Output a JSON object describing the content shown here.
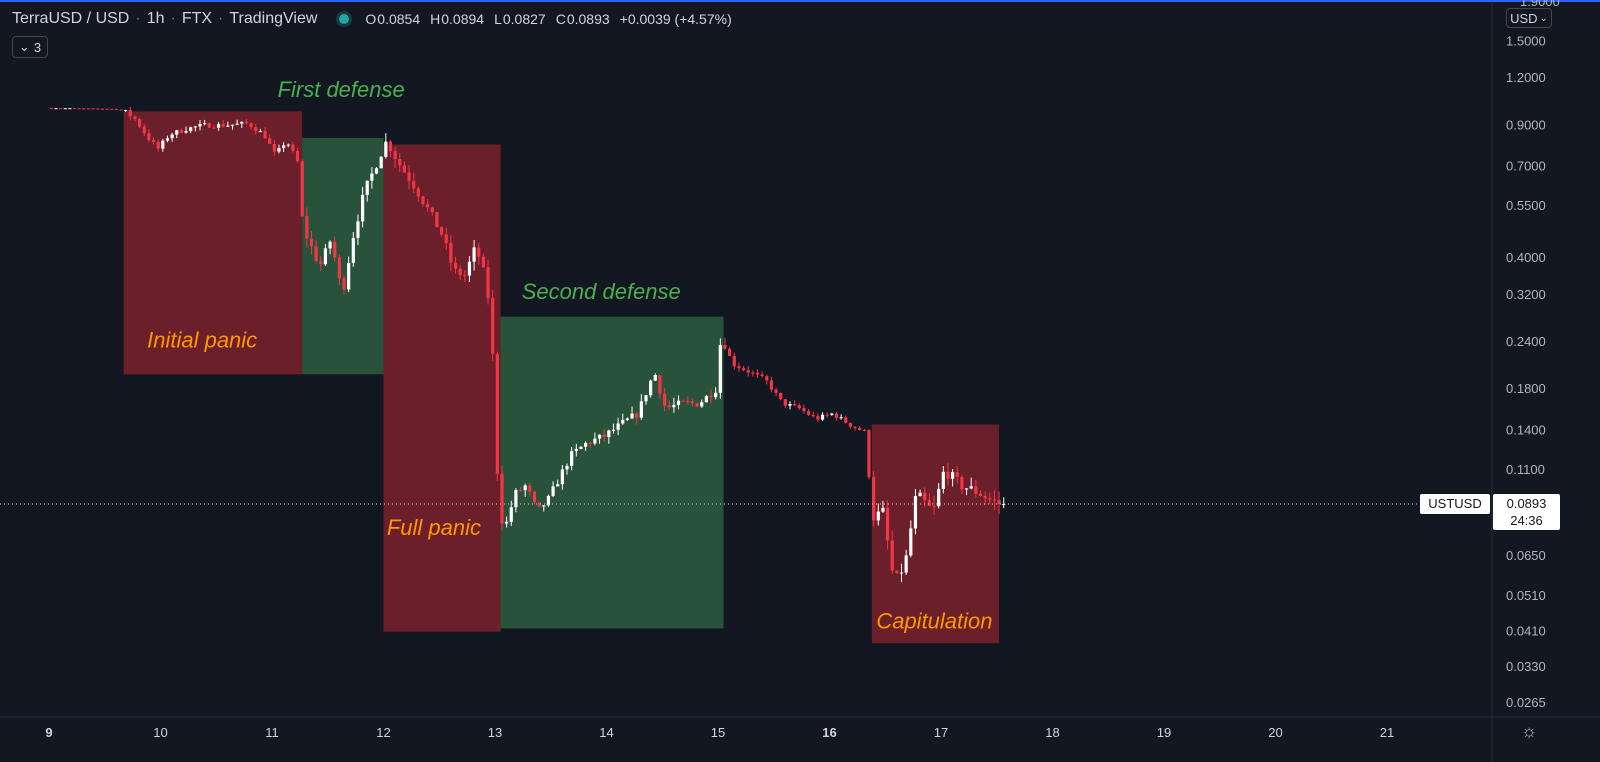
{
  "header": {
    "symbol": "TerraUSD / USD",
    "interval": "1h",
    "exchange": "FTX",
    "platform": "TradingView",
    "ohlc": {
      "o_label": "O",
      "o_value": "0.0854",
      "h_label": "H",
      "h_value": "0.0894",
      "l_label": "L",
      "l_value": "0.0827",
      "c_label": "C",
      "c_value": "0.0893",
      "change": "+0.0039 (+4.57%)"
    }
  },
  "collapse_button": {
    "label": "3"
  },
  "currency_button": {
    "label": "USD"
  },
  "axis_top_partial": "1.9000",
  "price_tag": {
    "symbol": "USTUSD",
    "price": "0.0893",
    "countdown": "24:36"
  },
  "colors": {
    "background": "#131722",
    "up": "#ffffff",
    "down": "#f23645",
    "red_zone": "#6b1f2b",
    "green_zone": "#28523a",
    "panic_text": "#ff9800",
    "defense_text": "#4caf50"
  },
  "chart_data": {
    "type": "candlestick",
    "y_scale": "log",
    "ylim": [
      0.025,
      1.9
    ],
    "yticks": [
      "1.5000",
      "1.2000",
      "0.9000",
      "0.7000",
      "0.5500",
      "0.4000",
      "0.3200",
      "0.2400",
      "0.1800",
      "0.1400",
      "0.1100",
      "0.0650",
      "0.0510",
      "0.0410",
      "0.0330",
      "0.0265"
    ],
    "ytick_values": [
      1.5,
      1.2,
      0.9,
      0.7,
      0.55,
      0.4,
      0.32,
      0.24,
      0.18,
      0.14,
      0.11,
      0.065,
      0.051,
      0.041,
      0.033,
      0.0265
    ],
    "xticks": [
      "9",
      "10",
      "11",
      "12",
      "13",
      "14",
      "15",
      "16",
      "17",
      "18",
      "19",
      "20",
      "21"
    ],
    "xtick_days": [
      9,
      10,
      11,
      12,
      13,
      14,
      15,
      16,
      17,
      18,
      19,
      20,
      21
    ],
    "bold_xticks": [
      "9",
      "16"
    ],
    "last_price": 0.0893,
    "price_path": [
      [
        9.0,
        1.0
      ],
      [
        9.6,
        0.995
      ],
      [
        9.7,
        0.98
      ],
      [
        9.8,
        0.93
      ],
      [
        9.9,
        0.84
      ],
      [
        10.0,
        0.78
      ],
      [
        10.1,
        0.85
      ],
      [
        10.25,
        0.88
      ],
      [
        10.4,
        0.9
      ],
      [
        10.6,
        0.9
      ],
      [
        10.8,
        0.91
      ],
      [
        10.95,
        0.85
      ],
      [
        11.05,
        0.75
      ],
      [
        11.15,
        0.82
      ],
      [
        11.25,
        0.72
      ],
      [
        11.3,
        0.48
      ],
      [
        11.45,
        0.38
      ],
      [
        11.55,
        0.45
      ],
      [
        11.65,
        0.32
      ],
      [
        11.75,
        0.46
      ],
      [
        11.85,
        0.6
      ],
      [
        12.0,
        0.76
      ],
      [
        12.05,
        0.82
      ],
      [
        12.15,
        0.72
      ],
      [
        12.3,
        0.62
      ],
      [
        12.45,
        0.52
      ],
      [
        12.55,
        0.46
      ],
      [
        12.65,
        0.37
      ],
      [
        12.75,
        0.36
      ],
      [
        12.85,
        0.43
      ],
      [
        12.95,
        0.34
      ],
      [
        13.0,
        0.22
      ],
      [
        13.05,
        0.095
      ],
      [
        13.1,
        0.075
      ],
      [
        13.2,
        0.095
      ],
      [
        13.3,
        0.1
      ],
      [
        13.4,
        0.085
      ],
      [
        13.5,
        0.092
      ],
      [
        13.6,
        0.105
      ],
      [
        13.7,
        0.12
      ],
      [
        13.85,
        0.13
      ],
      [
        14.0,
        0.135
      ],
      [
        14.15,
        0.145
      ],
      [
        14.3,
        0.155
      ],
      [
        14.45,
        0.2
      ],
      [
        14.55,
        0.16
      ],
      [
        14.7,
        0.165
      ],
      [
        14.85,
        0.165
      ],
      [
        15.0,
        0.18
      ],
      [
        15.05,
        0.25
      ],
      [
        15.15,
        0.21
      ],
      [
        15.3,
        0.2
      ],
      [
        15.45,
        0.19
      ],
      [
        15.6,
        0.165
      ],
      [
        15.75,
        0.16
      ],
      [
        15.9,
        0.15
      ],
      [
        16.05,
        0.155
      ],
      [
        16.2,
        0.145
      ],
      [
        16.35,
        0.138
      ],
      [
        16.4,
        0.082
      ],
      [
        16.5,
        0.085
      ],
      [
        16.6,
        0.055
      ],
      [
        16.7,
        0.062
      ],
      [
        16.8,
        0.095
      ],
      [
        16.95,
        0.085
      ],
      [
        17.05,
        0.11
      ],
      [
        17.2,
        0.1
      ],
      [
        17.35,
        0.096
      ],
      [
        17.45,
        0.092
      ],
      [
        17.55,
        0.0893
      ]
    ],
    "regions": [
      {
        "label": "Initial panic",
        "type": "red",
        "x0": 9.67,
        "x1": 11.27,
        "y0": 0.197,
        "y1": 0.98,
        "label_day": 9.88,
        "label_price": 0.232
      },
      {
        "label": "First defense",
        "type": "green",
        "x0": 11.27,
        "x1": 12.0,
        "y0": 0.197,
        "y1": 0.833,
        "label_day": 11.05,
        "label_price": 1.07
      },
      {
        "label": "Full panic",
        "type": "red",
        "x0": 12.0,
        "x1": 13.05,
        "y0": 0.041,
        "y1": 0.8,
        "label_day": 12.03,
        "label_price": 0.074
      },
      {
        "label": "Second defense",
        "type": "green",
        "x0": 13.05,
        "x1": 15.05,
        "y0": 0.0418,
        "y1": 0.28,
        "label_day": 13.24,
        "label_price": 0.312
      },
      {
        "label": "Capitulation",
        "type": "red",
        "x0": 16.38,
        "x1": 17.52,
        "y0": 0.0382,
        "y1": 0.145,
        "label_day": 16.42,
        "label_price": 0.0418
      }
    ]
  }
}
